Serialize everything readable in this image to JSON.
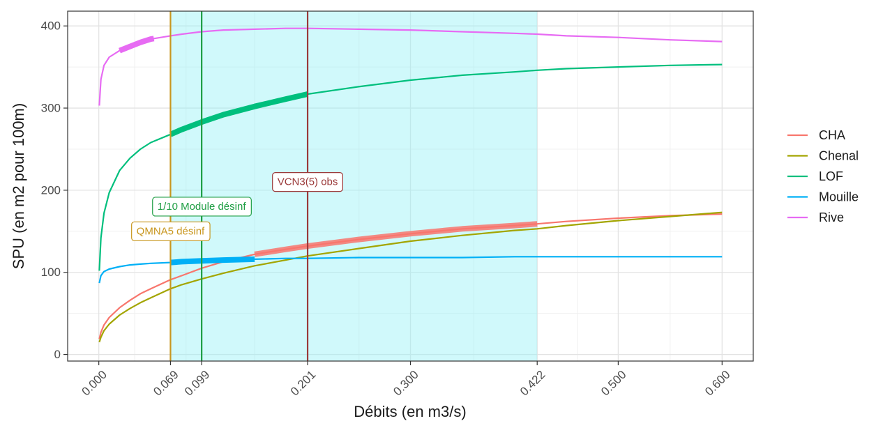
{
  "chart_data": {
    "type": "line",
    "xlabel": "Débits (en m3/s)",
    "ylabel": "SPU (en m2 pour 100m)",
    "xlim": [
      -0.03,
      0.63
    ],
    "ylim": [
      -8,
      418
    ],
    "x_ticks": [
      0.0,
      0.069,
      0.099,
      0.201,
      0.3,
      0.422,
      0.5,
      0.6
    ],
    "x_tick_labels": [
      "0.000",
      "0.069",
      "0.099",
      "0.201",
      "0.300",
      "0.422",
      "0.500",
      "0.600"
    ],
    "y_ticks": [
      0,
      100,
      200,
      300,
      400
    ],
    "y_tick_labels": [
      "0",
      "100",
      "200",
      "300",
      "400"
    ],
    "grid": true,
    "legend_position": "right",
    "shaded_band": {
      "x": [
        0.069,
        0.422
      ],
      "color": "#8ef0f5"
    },
    "vlines": [
      {
        "x": 0.069,
        "label": "QMNA5 désinf",
        "color": "#c8961e",
        "label_y": 150,
        "label_x": 0.069
      },
      {
        "x": 0.099,
        "label": "1/10 Module désinf",
        "color": "#1f9e44",
        "label_y": 180,
        "label_x": 0.099
      },
      {
        "x": 0.201,
        "label": "VCN3(5) obs",
        "color": "#9b3a3a",
        "label_y": 210,
        "label_x": 0.201
      }
    ],
    "series": [
      {
        "name": "CHA",
        "color": "#F8766D",
        "x": [
          0.0005,
          0.002,
          0.005,
          0.01,
          0.02,
          0.03,
          0.04,
          0.05,
          0.069,
          0.08,
          0.099,
          0.12,
          0.15,
          0.18,
          0.201,
          0.25,
          0.3,
          0.35,
          0.4,
          0.422,
          0.45,
          0.5,
          0.55,
          0.6
        ],
        "values": [
          19,
          27,
          36,
          45,
          57,
          66,
          74,
          80,
          91,
          96,
          105,
          113,
          122,
          128,
          132,
          140,
          147,
          153,
          157,
          159,
          162,
          166,
          169,
          171
        ],
        "highlight": [
          0.15,
          0.422
        ]
      },
      {
        "name": "Chenal",
        "color": "#A3A500",
        "x": [
          0.0005,
          0.002,
          0.005,
          0.01,
          0.02,
          0.03,
          0.04,
          0.05,
          0.069,
          0.08,
          0.099,
          0.12,
          0.15,
          0.18,
          0.201,
          0.25,
          0.3,
          0.35,
          0.4,
          0.422,
          0.45,
          0.5,
          0.55,
          0.6
        ],
        "values": [
          15,
          21,
          29,
          37,
          48,
          56,
          63,
          69,
          80,
          85,
          92,
          99,
          108,
          115,
          120,
          129,
          138,
          145,
          151,
          153,
          157,
          163,
          168,
          173
        ]
      },
      {
        "name": "LOF",
        "color": "#00BF7D",
        "x": [
          0.0005,
          0.002,
          0.005,
          0.01,
          0.02,
          0.03,
          0.04,
          0.05,
          0.069,
          0.08,
          0.099,
          0.12,
          0.15,
          0.18,
          0.201,
          0.25,
          0.3,
          0.35,
          0.4,
          0.422,
          0.45,
          0.5,
          0.55,
          0.6
        ],
        "values": [
          102,
          142,
          172,
          197,
          224,
          239,
          250,
          258,
          268,
          274,
          283,
          292,
          302,
          311,
          317,
          326,
          334,
          340,
          344,
          346,
          348,
          350,
          352,
          353
        ],
        "highlight": [
          0.069,
          0.201
        ]
      },
      {
        "name": "Mouille",
        "color": "#00B0F6",
        "x": [
          0.0005,
          0.002,
          0.005,
          0.01,
          0.02,
          0.03,
          0.04,
          0.05,
          0.069,
          0.08,
          0.099,
          0.12,
          0.15,
          0.18,
          0.201,
          0.25,
          0.3,
          0.35,
          0.4,
          0.422,
          0.45,
          0.5,
          0.55,
          0.6
        ],
        "values": [
          87,
          96,
          101,
          104,
          107,
          109,
          110,
          111,
          112,
          113,
          114,
          115,
          116,
          117,
          117,
          118,
          118,
          118,
          119,
          119,
          119,
          119,
          119,
          119
        ],
        "highlight": [
          0.069,
          0.15
        ]
      },
      {
        "name": "Rive",
        "color": "#E76BF3",
        "x": [
          0.0005,
          0.002,
          0.005,
          0.01,
          0.02,
          0.03,
          0.04,
          0.05,
          0.069,
          0.08,
          0.099,
          0.12,
          0.15,
          0.18,
          0.201,
          0.25,
          0.3,
          0.35,
          0.4,
          0.422,
          0.45,
          0.5,
          0.55,
          0.6
        ],
        "values": [
          303,
          335,
          352,
          362,
          370,
          375,
          380,
          384,
          388,
          390,
          393,
          395,
          396,
          397,
          397,
          396,
          395,
          393,
          391,
          390,
          388,
          386,
          383,
          381
        ],
        "highlight": [
          0.02,
          0.053
        ]
      }
    ]
  }
}
